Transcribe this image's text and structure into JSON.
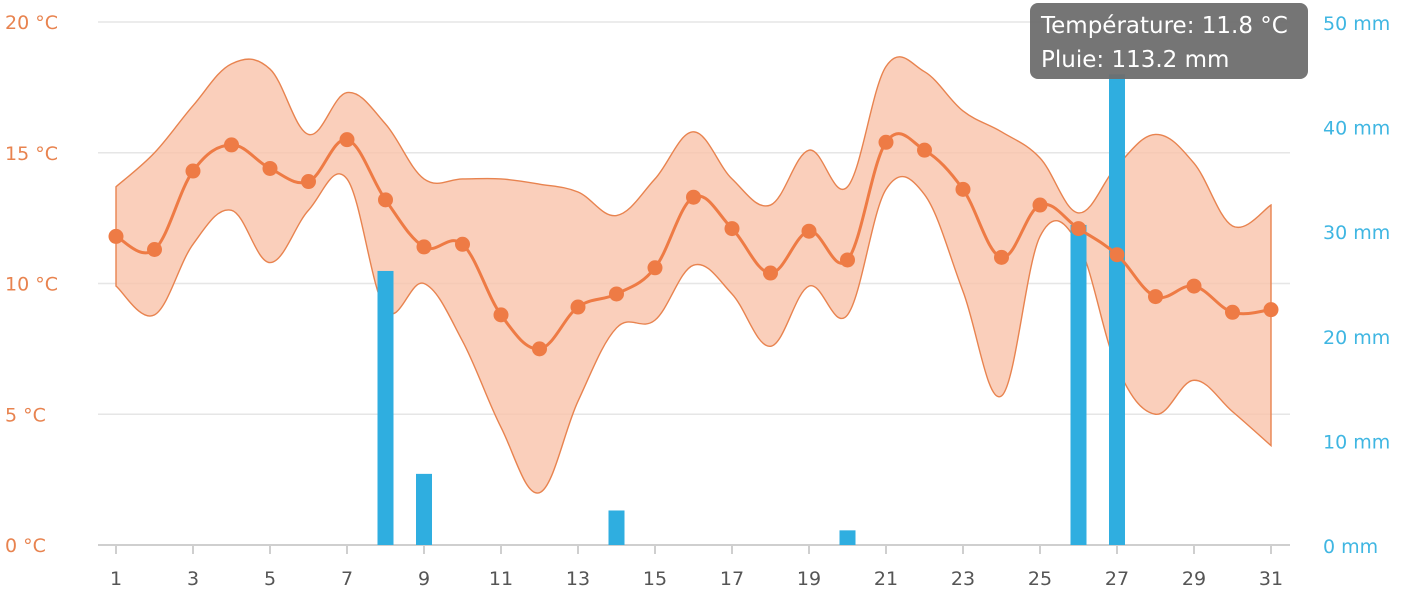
{
  "chart_data": {
    "type": "line",
    "x": [
      1,
      2,
      3,
      4,
      5,
      6,
      7,
      8,
      9,
      10,
      11,
      12,
      13,
      14,
      15,
      16,
      17,
      18,
      19,
      20,
      21,
      22,
      23,
      24,
      25,
      26,
      27,
      28,
      29,
      30,
      31
    ],
    "x_tick_labels": [
      "1",
      "3",
      "5",
      "7",
      "9",
      "11",
      "13",
      "15",
      "17",
      "19",
      "21",
      "23",
      "25",
      "27",
      "29",
      "31"
    ],
    "series": [
      {
        "type": "line",
        "axis": "left",
        "values": [
          11.8,
          11.3,
          14.3,
          15.3,
          14.4,
          13.9,
          15.5,
          13.2,
          11.4,
          11.5,
          8.8,
          7.5,
          9.1,
          9.6,
          10.6,
          13.3,
          12.1,
          10.4,
          12.0,
          10.9,
          15.4,
          15.1,
          13.6,
          11.0,
          13.0,
          12.1,
          11.1,
          9.5,
          9.9,
          8.9,
          9.0
        ]
      },
      {
        "type": "range",
        "axis": "left",
        "low": [
          9.9,
          8.8,
          11.5,
          12.8,
          10.8,
          12.8,
          14.0,
          9.0,
          10.0,
          7.8,
          4.5,
          2.0,
          5.5,
          8.3,
          8.6,
          10.7,
          9.6,
          7.6,
          9.9,
          8.8,
          13.6,
          13.4,
          9.7,
          5.7,
          11.8,
          11.5,
          6.8,
          5.0,
          6.3,
          5.1,
          3.8
        ],
        "high": [
          13.7,
          15.0,
          16.8,
          18.4,
          18.2,
          15.7,
          17.3,
          16.1,
          14.0,
          14.0,
          14.0,
          13.8,
          13.5,
          12.6,
          14.0,
          15.8,
          14.0,
          13.0,
          15.1,
          13.7,
          18.3,
          18.1,
          16.6,
          15.8,
          14.8,
          12.7,
          14.5,
          15.7,
          14.6,
          12.2,
          13.0
        ]
      },
      {
        "type": "bar",
        "axis": "right",
        "values": [
          0,
          0,
          0,
          0,
          0,
          0,
          0,
          26.2,
          6.8,
          0,
          0,
          0,
          0,
          3.3,
          0,
          0,
          0,
          0,
          0,
          1.4,
          0,
          0,
          0,
          0,
          0,
          30.6,
          45.0,
          0,
          0,
          0,
          0
        ]
      }
    ],
    "y_left": {
      "ticks": [
        0,
        5,
        10,
        15,
        20
      ],
      "labels": [
        "0 °C",
        "5 °C",
        "10 °C",
        "15 °C",
        "20 °C"
      ],
      "ylim": [
        0,
        20
      ]
    },
    "y_right": {
      "ticks": [
        0,
        10,
        20,
        30,
        40,
        50
      ],
      "labels": [
        "0 mm",
        "10 mm",
        "20 mm",
        "30 mm",
        "40 mm",
        "50 mm"
      ],
      "ylim": [
        0,
        50
      ]
    },
    "colors": {
      "temperature": "#ee7b45",
      "range_fill": "#f9c1a8",
      "rain": "#2faee0",
      "left_axis": "#e8834f",
      "right_axis": "#3fb6e2"
    },
    "grid": true,
    "tooltip": {
      "x": 27,
      "line1": "Température: 11.8 °C",
      "line2": "Pluie: 113.2 mm"
    }
  }
}
